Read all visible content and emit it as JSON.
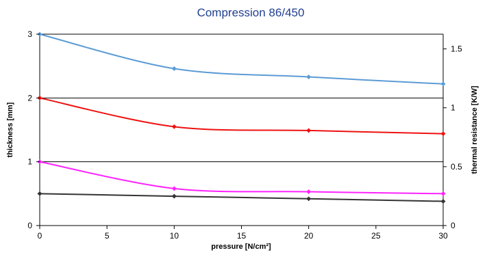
{
  "chart_data": {
    "type": "line",
    "title": "Compression 86/450",
    "xlabel": "pressure [N/cm²]",
    "ylabel": "thickness [mm]",
    "y2label": "thermal resistance [K/W]",
    "xlim": [
      0,
      30
    ],
    "ylim": [
      0,
      3
    ],
    "y2lim": [
      0,
      1.625
    ],
    "x_ticks": [
      "0",
      "5",
      "10",
      "15",
      "20",
      "25",
      "30"
    ],
    "y_ticks": [
      "0",
      "1",
      "2",
      "3"
    ],
    "y2_ticks": [
      "0",
      "0.5",
      "1",
      "1.5"
    ],
    "grid": "horizontal",
    "legend": "none",
    "x": [
      0,
      10,
      20,
      30
    ],
    "series": [
      {
        "axis": "left",
        "values": [
          3.0,
          2.46,
          2.33,
          2.22
        ],
        "color": "#5b9bd5"
      },
      {
        "axis": "left",
        "values": [
          2.0,
          1.55,
          1.49,
          1.44
        ],
        "color": "#ee1111"
      },
      {
        "axis": "left",
        "values": [
          1.0,
          0.58,
          0.53,
          0.5
        ],
        "color": "#ff22ff"
      },
      {
        "axis": "left",
        "values": [
          0.5,
          0.46,
          0.42,
          0.38
        ],
        "color": "#333333"
      }
    ]
  }
}
